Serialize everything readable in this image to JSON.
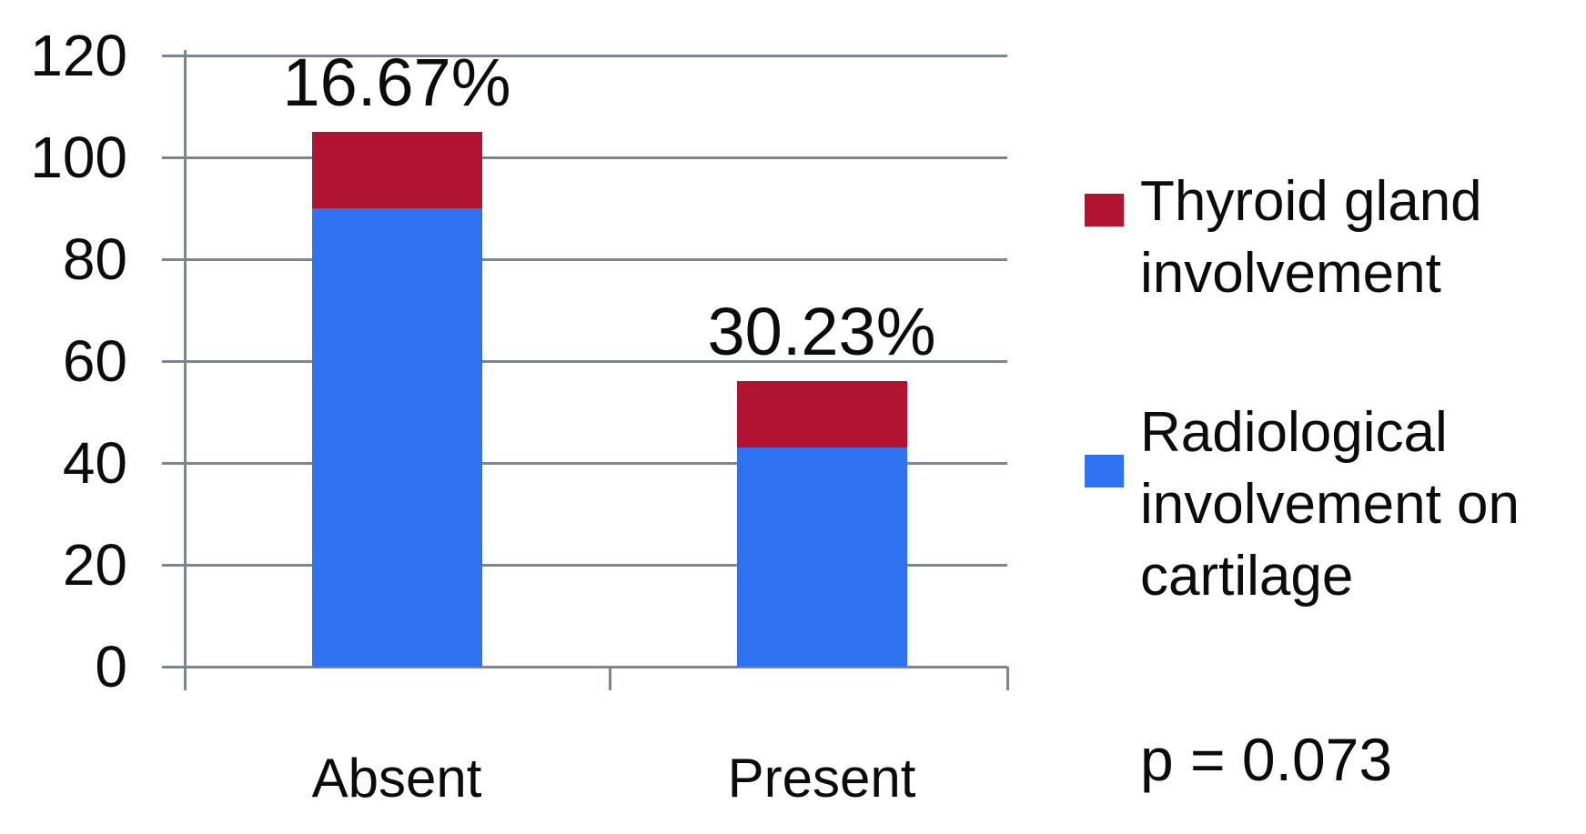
{
  "chart_data": {
    "type": "bar",
    "stacked": true,
    "title": "",
    "xlabel": "",
    "ylabel": "",
    "categories": [
      "Absent",
      "Present"
    ],
    "series": [
      {
        "name": "Radiological involvement on cartilage",
        "color": "#2E71F1",
        "values": [
          90,
          43
        ]
      },
      {
        "name": "Thyroid gland involvement",
        "color": "#B11230",
        "values": [
          15,
          13
        ]
      }
    ],
    "bar_value_labels": [
      "16.67%",
      "30.23%"
    ],
    "ylim": [
      0,
      120
    ],
    "yticks": [
      0,
      20,
      40,
      60,
      80,
      100,
      120
    ],
    "grid": true,
    "gridline_color": "#7b8887",
    "legend_position": "right",
    "annotation": "p = 0.073"
  }
}
